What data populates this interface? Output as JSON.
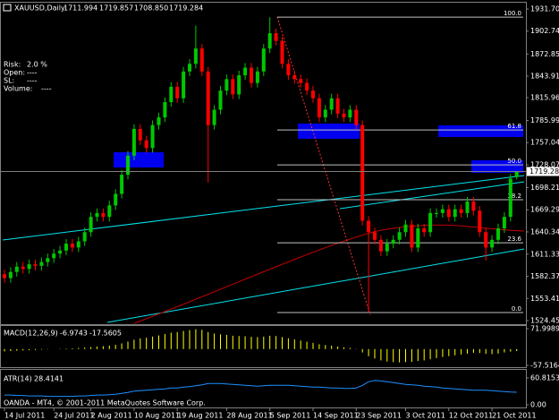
{
  "chart_data": {
    "type": "candlestick",
    "title": "XAUUSD,Daily",
    "header_values": [
      1711.994,
      1719.857,
      {
        "value": 1708.85,
        "label": "1708.850"
      },
      1719.284
    ],
    "info": [
      {
        "label": "Risk:",
        "value": "2.0 %"
      },
      {
        "label": "Open:",
        "value": "----"
      },
      {
        "label": "SL:",
        "value": "----"
      },
      {
        "label": "Volume:",
        "value": "----"
      }
    ],
    "categories": [
      "14 Jul 2011",
      null,
      null,
      null,
      null,
      null,
      null,
      null,
      "24 Jul 2011",
      null,
      null,
      null,
      null,
      null,
      "2 Aug 2011",
      null,
      null,
      null,
      null,
      null,
      null,
      "10 Aug 2011",
      null,
      null,
      null,
      null,
      null,
      null,
      "19 Aug 2011",
      null,
      null,
      null,
      null,
      null,
      null,
      null,
      "28 Aug 2011",
      null,
      null,
      null,
      null,
      null,
      null,
      "5 Sep 2011",
      null,
      null,
      null,
      null,
      null,
      null,
      "14 Sep 2011",
      null,
      null,
      null,
      null,
      null,
      null,
      "23 Sep 2011",
      null,
      null,
      null,
      null,
      null,
      null,
      null,
      "3 Oct 2011",
      null,
      null,
      null,
      null,
      null,
      null,
      "12 Oct 2011",
      null,
      null,
      null,
      null,
      null,
      null,
      "21 Oct 2011",
      null,
      null,
      null,
      null
    ],
    "open": [
      1585,
      1580,
      1588,
      1595,
      1592,
      1598,
      1596,
      1601,
      1606,
      1612,
      1616,
      1625,
      1620,
      1628,
      1640,
      1660,
      1665,
      1660,
      1675,
      1690,
      1715,
      1740,
      1775,
      1760,
      1750,
      1780,
      1790,
      1810,
      1830,
      1815,
      1850,
      1860,
      1880,
      1850,
      1780,
      1800,
      1825,
      1840,
      1820,
      1845,
      1855,
      1835,
      1850,
      1880,
      1900,
      1890,
      1860,
      1845,
      1840,
      1835,
      1825,
      1815,
      1790,
      1800,
      1815,
      1795,
      1790,
      1800,
      1780,
      1655,
      1640,
      1630,
      1615,
      1625,
      1630,
      1640,
      1650,
      1620,
      1645,
      1640,
      1665,
      1665,
      1670,
      1660,
      1670,
      1665,
      1680,
      1668,
      1640,
      1620,
      1630,
      1645,
      1660,
      1711.994
    ],
    "high": [
      1591,
      1594,
      1601,
      1601,
      1604,
      1604,
      1607,
      1612,
      1618,
      1622,
      1631,
      1631,
      1634,
      1646,
      1666,
      1671,
      1671,
      1681,
      1696,
      1721,
      1746,
      1781,
      1781,
      1766,
      1786,
      1796,
      1816,
      1836,
      1836,
      1856,
      1866,
      1910,
      1886,
      1856,
      1806,
      1831,
      1846,
      1846,
      1851,
      1861,
      1861,
      1856,
      1886,
      1921,
      1906,
      1896,
      1866,
      1851,
      1846,
      1841,
      1831,
      1821,
      1806,
      1821,
      1821,
      1801,
      1806,
      1806,
      1786,
      1661,
      1646,
      1636,
      1631,
      1636,
      1646,
      1656,
      1656,
      1651,
      1651,
      1671,
      1671,
      1676,
      1676,
      1676,
      1676,
      1686,
      1686,
      1674,
      1646,
      1636,
      1651,
      1666,
      1716,
      1719.857
    ],
    "low": [
      1574,
      1574,
      1582,
      1586,
      1586,
      1590,
      1590,
      1595,
      1600,
      1606,
      1610,
      1614,
      1614,
      1622,
      1634,
      1654,
      1654,
      1654,
      1669,
      1684,
      1709,
      1734,
      1754,
      1744,
      1744,
      1774,
      1784,
      1804,
      1809,
      1809,
      1844,
      1854,
      1844,
      1705,
      1774,
      1794,
      1819,
      1814,
      1814,
      1839,
      1829,
      1829,
      1844,
      1874,
      1884,
      1854,
      1839,
      1834,
      1829,
      1819,
      1809,
      1784,
      1784,
      1794,
      1789,
      1784,
      1784,
      1774,
      1649,
      1535,
      1624,
      1609,
      1609,
      1619,
      1624,
      1634,
      1614,
      1614,
      1634,
      1634,
      1659,
      1659,
      1654,
      1654,
      1659,
      1659,
      1662,
      1634,
      1603,
      1614,
      1624,
      1639,
      1654,
      1708.85
    ],
    "close": [
      1580,
      1588,
      1595,
      1592,
      1598,
      1596,
      1601,
      1606,
      1612,
      1616,
      1625,
      1620,
      1628,
      1640,
      1660,
      1665,
      1660,
      1675,
      1690,
      1715,
      1740,
      1775,
      1760,
      1750,
      1780,
      1790,
      1810,
      1830,
      1815,
      1850,
      1860,
      1880,
      1850,
      1780,
      1800,
      1825,
      1840,
      1820,
      1845,
      1855,
      1835,
      1850,
      1880,
      1900,
      1890,
      1860,
      1845,
      1840,
      1835,
      1825,
      1815,
      1790,
      1800,
      1815,
      1795,
      1790,
      1800,
      1780,
      1655,
      1640,
      1630,
      1615,
      1625,
      1630,
      1640,
      1650,
      1620,
      1645,
      1640,
      1665,
      1665,
      1670,
      1660,
      1670,
      1665,
      1680,
      1668,
      1640,
      1620,
      1630,
      1645,
      1660,
      1710,
      1719.284
    ],
    "up_color": "#00c800",
    "down_color": "#ff0000",
    "ylim": [
      1524.45,
      1931.7
    ],
    "yticks": [
      {
        "value": 1931.7,
        "label": "1931.70"
      },
      1902.74,
      1872.85,
      1843.91,
      1815.96,
      1785.99,
      1757.04,
      1728.07,
      1698.21,
      1669.29,
      1640.34,
      1611.33,
      1582.37,
      1553.41,
      1524.45
    ],
    "last_price": 1719.28,
    "grid": false,
    "fibonacci": {
      "range": [
        1535,
        1921
      ],
      "color": "#c0c0c0",
      "levels": [
        {
          "value": 100,
          "label": "100.0"
        },
        61.8,
        {
          "value": 50,
          "label": "50.0"
        },
        38.2,
        23.6,
        {
          "value": 0,
          "label": "0.0"
        }
      ]
    },
    "macd": {
      "name": "MACD(12,26,9)",
      "readouts": [
        -6.9743,
        -17.5605
      ],
      "color": "#ffff00",
      "ylim": [
        -57.5164,
        71.9989
      ],
      "yticks": [
        71.9989,
        -57.5164
      ],
      "values": [
        -8,
        -7,
        -6,
        -5,
        -4,
        -3,
        -2,
        -1,
        0,
        1,
        2,
        3,
        4,
        5,
        7,
        9,
        10,
        12,
        15,
        20,
        26,
        33,
        38,
        40,
        44,
        48,
        53,
        58,
        60,
        64,
        67,
        70,
        68,
        60,
        55,
        52,
        50,
        47,
        46,
        45,
        43,
        42,
        44,
        47,
        46,
        42,
        38,
        34,
        30,
        26,
        22,
        17,
        14,
        12,
        9,
        6,
        4,
        1,
        -12,
        -25,
        -33,
        -40,
        -44,
        -46,
        -47,
        -46,
        -45,
        -42,
        -40,
        -36,
        -32,
        -28,
        -25,
        -22,
        -19,
        -16,
        -13,
        -14,
        -17,
        -18,
        -16,
        -12,
        -9,
        -6.9743
      ]
    },
    "atr": {
      "name": "ATR(14)",
      "readout": 28.4141,
      "color": "#1e90ff",
      "ylim": [
        0,
        60.8153
      ],
      "yticks": [
        60.8153,
        {
          "value": 0,
          "label": "0.00"
        }
      ],
      "values": [
        22,
        22,
        21,
        21,
        20,
        20,
        20,
        19,
        19,
        19,
        19,
        19,
        20,
        20,
        21,
        22,
        22,
        23,
        24,
        26,
        28,
        31,
        32,
        33,
        34,
        35,
        36,
        38,
        38,
        40,
        41,
        43,
        45,
        48,
        48,
        48,
        47,
        46,
        45,
        44,
        43,
        42,
        43,
        44,
        44,
        44,
        44,
        43,
        42,
        41,
        40,
        40,
        39,
        38,
        38,
        37,
        37,
        38,
        44,
        52,
        55,
        54,
        52,
        50,
        48,
        46,
        45,
        44,
        42,
        41,
        40,
        38,
        37,
        36,
        35,
        34,
        33,
        33,
        33,
        32,
        31,
        30,
        29,
        28.4141
      ]
    },
    "footer": "OANDA - MT4, © 2001-2011 MetaQuotes Software Corp."
  }
}
